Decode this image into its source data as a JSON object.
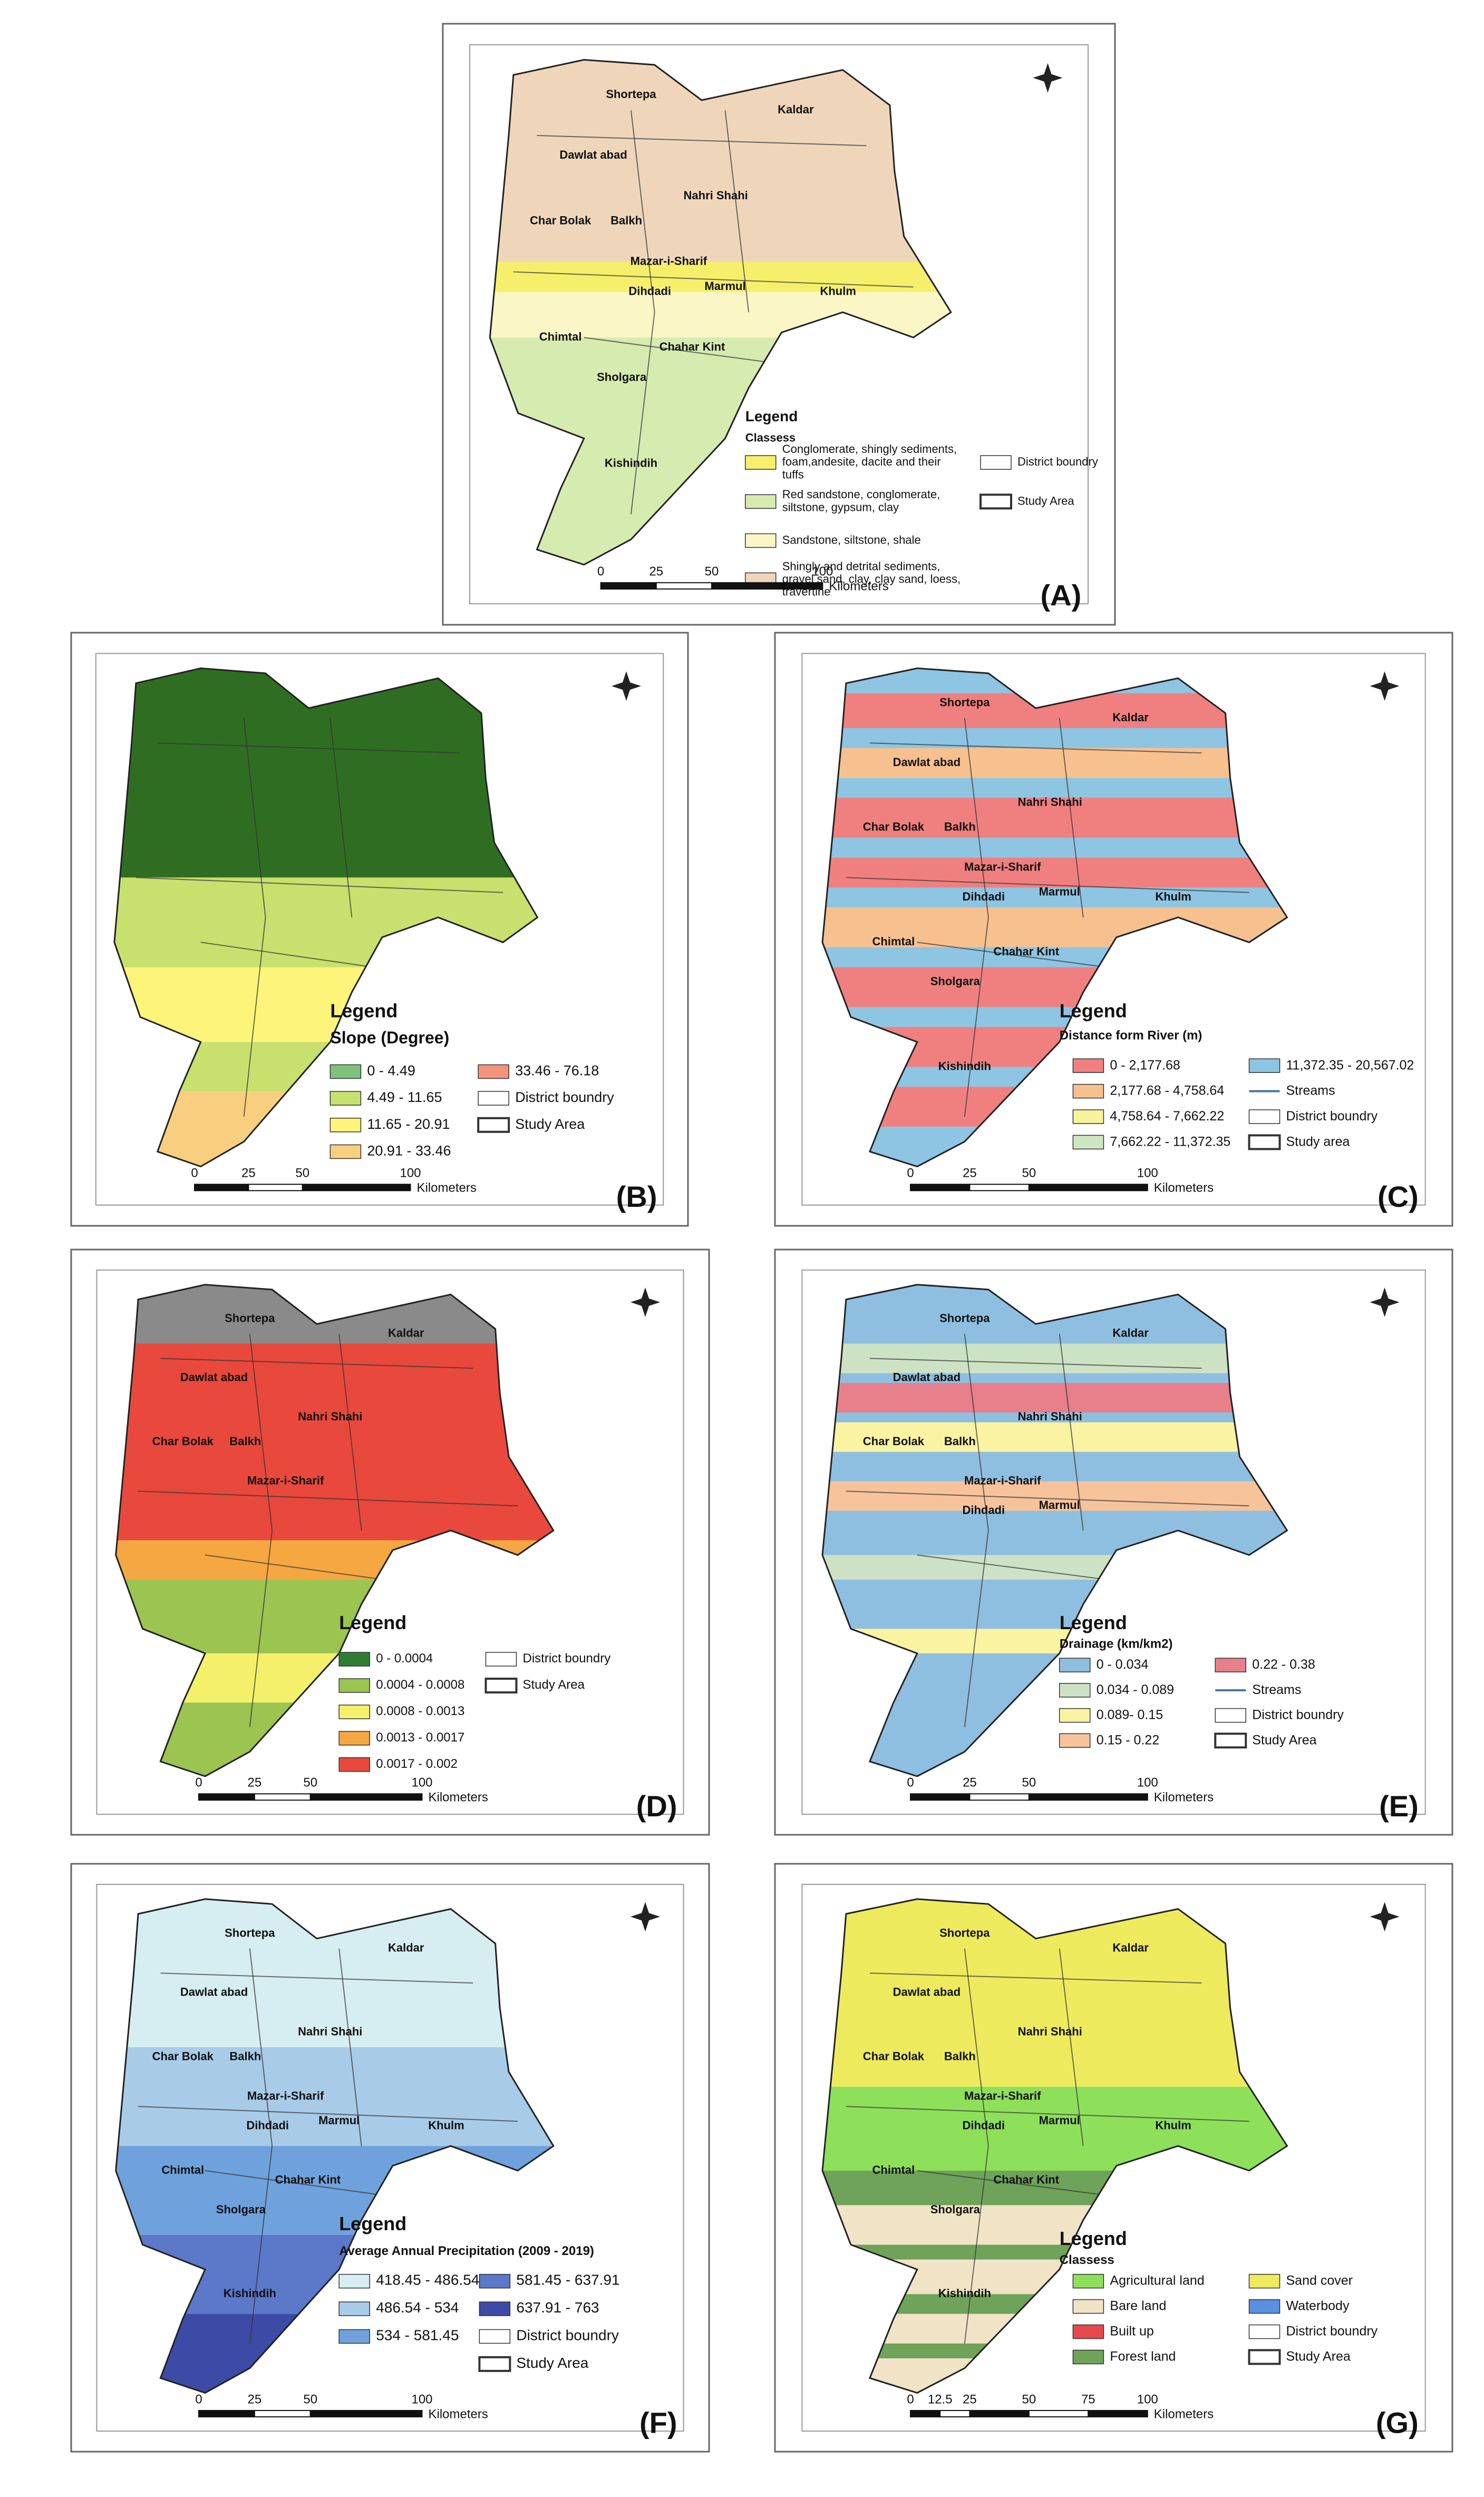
{
  "panels": [
    {
      "label": "(A)",
      "legend_title": "Legend",
      "legend_subtitle": "Classess",
      "items": [
        {
          "label": "Conglomerate, shingly sediments, foam,andesite, dacite and their tuffs",
          "color": "#f6ef6b",
          "symbol": "box"
        },
        {
          "label": "Red sandstone, conglomerate, siltstone, gypsum, clay",
          "color": "#d6ebb0",
          "symbol": "box"
        },
        {
          "label": "Sandstone, siltstone, shale",
          "color": "#fbf6c6",
          "symbol": "box"
        },
        {
          "label": "Shingly and detrital sediments, gravel sand, clay, clay sand, loess, travertine",
          "color": "#efd6bb",
          "symbol": "box"
        },
        {
          "label": "District boundry",
          "color": "#ffffff",
          "symbol": "box"
        },
        {
          "label": "Study Area",
          "color": "#ffffff",
          "symbol": "thick"
        }
      ],
      "scale": [
        "0",
        "25",
        "50",
        "100"
      ],
      "scale_unit": "Kilometers",
      "districts": [
        "Shortepa",
        "Kaldar",
        "Dawlat abad",
        "Nahri Shahi",
        "Char Bolak",
        "Balkh",
        "Mazar-i-Sharif",
        "Dihdadi",
        "Marmul",
        "Chimtal",
        "Khulm",
        "Chahar Kint",
        "Sholgara",
        "Kishindih"
      ]
    },
    {
      "label": "(B)",
      "legend_title": "Legend",
      "legend_subtitle": "Slope (Degree)",
      "items": [
        {
          "label": "0 - 4.49",
          "color": "#7fc27b",
          "symbol": "box"
        },
        {
          "label": "4.49 - 11.65",
          "color": "#c8e06e",
          "symbol": "box"
        },
        {
          "label": "11.65 - 20.91",
          "color": "#fdf57a",
          "symbol": "box"
        },
        {
          "label": "20.91 - 33.46",
          "color": "#f8cf7e",
          "symbol": "box"
        },
        {
          "label": "33.46 - 76.18",
          "color": "#f4937c",
          "symbol": "box"
        },
        {
          "label": "District boundry",
          "color": "#ffffff",
          "symbol": "box"
        },
        {
          "label": "Study Area",
          "color": "#ffffff",
          "symbol": "thick"
        }
      ],
      "scale": [
        "0",
        "25",
        "50",
        "100"
      ],
      "scale_unit": "Kilometers",
      "districts": []
    },
    {
      "label": "(C)",
      "legend_title": "Legend",
      "legend_subtitle": "Distance form River (m)",
      "items": [
        {
          "label": "0 - 2,177.68",
          "color": "#f08080",
          "symbol": "box"
        },
        {
          "label": "2,177.68 - 4,758.64",
          "color": "#f7c08f",
          "symbol": "box"
        },
        {
          "label": "4,758.64 - 7,662.22",
          "color": "#f8f39a",
          "symbol": "box"
        },
        {
          "label": "7,662.22 - 11,372.35",
          "color": "#cfe5c2",
          "symbol": "box"
        },
        {
          "label": "11,372.35 - 20,567.02",
          "color": "#8ec5e3",
          "symbol": "box"
        },
        {
          "label": "Streams",
          "color": "#4a6fa5",
          "symbol": "line"
        },
        {
          "label": "District boundry",
          "color": "#ffffff",
          "symbol": "box"
        },
        {
          "label": "Study area",
          "color": "#ffffff",
          "symbol": "thick"
        }
      ],
      "scale": [
        "0",
        "25",
        "50",
        "100"
      ],
      "scale_unit": "Kilometers",
      "districts": [
        "Shortepa",
        "Kaldar",
        "Dawlat abad",
        "Nahri Shahi",
        "Char Bolak",
        "Balkh",
        "Mazar-i-Sharif",
        "Dihdadi",
        "Marmul",
        "Chimtal",
        "Khulm",
        "Chahar Kint",
        "Sholgara",
        "Kishindih"
      ]
    },
    {
      "label": "(D)",
      "legend_title": "Legend",
      "items": [
        {
          "label": "0 - 0.0004",
          "color": "#2f7d32",
          "symbol": "box"
        },
        {
          "label": "0.0004 - 0.0008",
          "color": "#9bc451",
          "symbol": "box"
        },
        {
          "label": "0.0008 - 0.0013",
          "color": "#f5f06a",
          "symbol": "box"
        },
        {
          "label": "0.0013 - 0.0017",
          "color": "#f5a742",
          "symbol": "box"
        },
        {
          "label": "0.0017 - 0.002",
          "color": "#e8493c",
          "symbol": "box"
        },
        {
          "label": "District boundry",
          "color": "#ffffff",
          "symbol": "box"
        },
        {
          "label": "Study Area",
          "color": "#ffffff",
          "symbol": "thick"
        }
      ],
      "scale": [
        "0",
        "25",
        "50",
        "100"
      ],
      "scale_unit": "Kilometers",
      "districts": [
        "Shortepa",
        "Kaldar",
        "Dawlat abad",
        "Nahri Shahi",
        "Char Bolak",
        "Balkh",
        "Mazar-i-Sharif"
      ]
    },
    {
      "label": "(E)",
      "legend_title": "Legend",
      "legend_subtitle": "Drainage (km/km2)",
      "items": [
        {
          "label": "0 - 0.034",
          "color": "#8fbfe0",
          "symbol": "box"
        },
        {
          "label": "0.034 - 0.089",
          "color": "#cde2c4",
          "symbol": "box"
        },
        {
          "label": "0.089- 0.15",
          "color": "#faf3a2",
          "symbol": "box"
        },
        {
          "label": "0.15 - 0.22",
          "color": "#f6c39b",
          "symbol": "box"
        },
        {
          "label": "0.22 - 0.38",
          "color": "#e7808b",
          "symbol": "box"
        },
        {
          "label": "Streams",
          "color": "#4a6fa5",
          "symbol": "line"
        },
        {
          "label": "District boundry",
          "color": "#ffffff",
          "symbol": "box"
        },
        {
          "label": "Study Area",
          "color": "#ffffff",
          "symbol": "thick"
        }
      ],
      "scale": [
        "0",
        "25",
        "50",
        "100"
      ],
      "scale_unit": "Kilometers",
      "districts": [
        "Shortepa",
        "Kaldar",
        "Dawlat abad",
        "Nahri Shahi",
        "Char Bolak",
        "Balkh",
        "Mazar-i-Sharif",
        "Dihdadi",
        "Marmul"
      ]
    },
    {
      "label": "(F)",
      "legend_title": "Legend",
      "legend_subtitle": "Average Annual Precipitation (2009 - 2019)",
      "items": [
        {
          "label": "418.45 - 486.54",
          "color": "#d6eef2",
          "symbol": "box"
        },
        {
          "label": "486.54 - 534",
          "color": "#a8cbe8",
          "symbol": "box"
        },
        {
          "label": "534 - 581.45",
          "color": "#6fa2dc",
          "symbol": "box"
        },
        {
          "label": "581.45 - 637.91",
          "color": "#5b78c9",
          "symbol": "box"
        },
        {
          "label": "637.91 - 763",
          "color": "#3d4aa6",
          "symbol": "box"
        },
        {
          "label": "District boundry",
          "color": "#ffffff",
          "symbol": "box"
        },
        {
          "label": "Study Area",
          "color": "#ffffff",
          "symbol": "thick"
        }
      ],
      "scale": [
        "0",
        "25",
        "50",
        "100"
      ],
      "scale_unit": "Kilometers",
      "districts": [
        "Shortepa",
        "Kaldar",
        "Dawlat abad",
        "Nahri Shahi",
        "Char Bolak",
        "Balkh",
        "Mazar-i-Sharif",
        "Dihdadi",
        "Marmul",
        "Chimtal",
        "Khulm",
        "Chahar Kint",
        "Sholgara",
        "Kishindih"
      ]
    },
    {
      "label": "(G)",
      "legend_title": "Legend",
      "legend_subtitle": "Classess",
      "items": [
        {
          "label": "Agricultural land",
          "color": "#8ee05a",
          "symbol": "box"
        },
        {
          "label": "Bare land",
          "color": "#f1e3c6",
          "symbol": "box"
        },
        {
          "label": "Built up",
          "color": "#e8494c",
          "symbol": "box"
        },
        {
          "label": "Forest land",
          "color": "#6fa35a",
          "symbol": "box"
        },
        {
          "label": "Sand cover",
          "color": "#eeea5e",
          "symbol": "box"
        },
        {
          "label": "Waterbody",
          "color": "#5b8fe0",
          "symbol": "box"
        },
        {
          "label": "District boundry",
          "color": "#ffffff",
          "symbol": "box"
        },
        {
          "label": "Study Area",
          "color": "#ffffff",
          "symbol": "thick"
        }
      ],
      "scale": [
        "0",
        "12.5",
        "25",
        "50",
        "75",
        "100"
      ],
      "scale_unit": "Kilometers",
      "districts": [
        "Shortepa",
        "Kaldar",
        "Dawlat abad",
        "Nahri Shahi",
        "Char Bolak",
        "Balkh",
        "Mazar-i-Sharif",
        "Dihdadi",
        "Marmul",
        "Chimtal",
        "Khulm",
        "Chahar Kint",
        "Sholgara",
        "Kishindih"
      ]
    }
  ]
}
